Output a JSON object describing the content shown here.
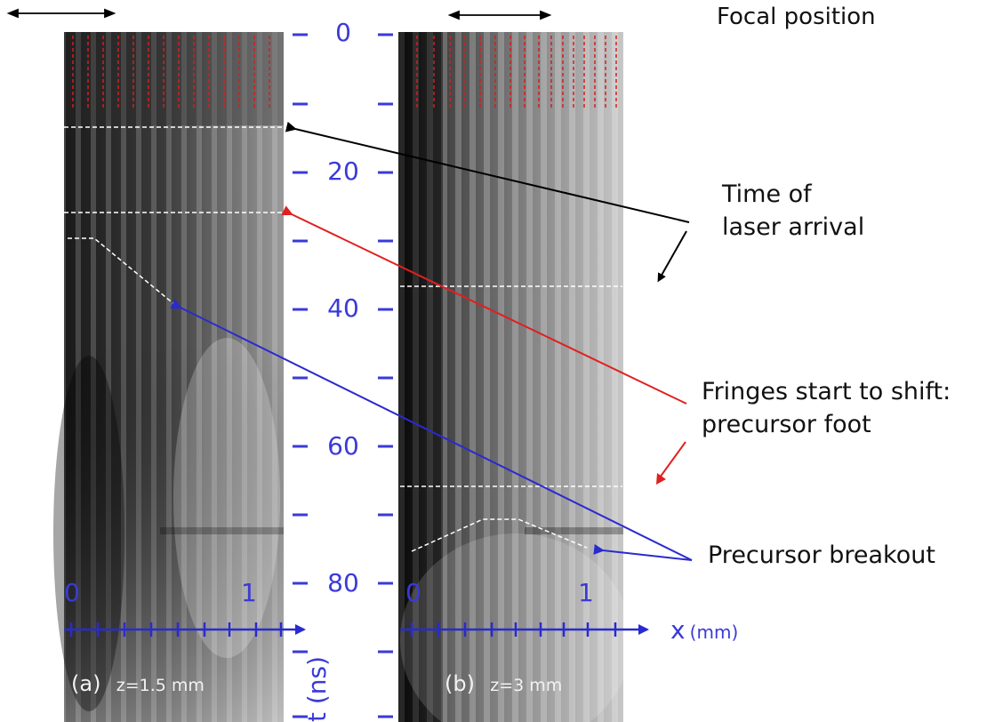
{
  "figure": {
    "focal_position": "Focal position",
    "annotations": {
      "laser_arrival_line1": "Time of",
      "laser_arrival_line2": "laser arrival",
      "fringes_line1": "Fringes start to shift:",
      "fringes_line2": "precursor foot",
      "breakout": "Precursor breakout"
    },
    "t_axis": {
      "label": "t (ns)",
      "tick_labels": [
        "0",
        "20",
        "40",
        "60",
        "80"
      ]
    },
    "x_axis": {
      "label_symbol": "x",
      "label_unit": "(mm)",
      "tick_labels": [
        "0",
        "1"
      ]
    },
    "panels": [
      {
        "label": "(a)",
        "caption": "z=1.5 mm"
      },
      {
        "label": "(b)",
        "caption": "z=3 mm"
      }
    ],
    "colors": {
      "axis": "#3a3ad8",
      "arrow_black": "#000000",
      "arrow_red": "#e02020",
      "arrow_blue": "#2a2ad0",
      "guide_white": "#ffffff",
      "fringe_marker": "#d02020"
    }
  }
}
